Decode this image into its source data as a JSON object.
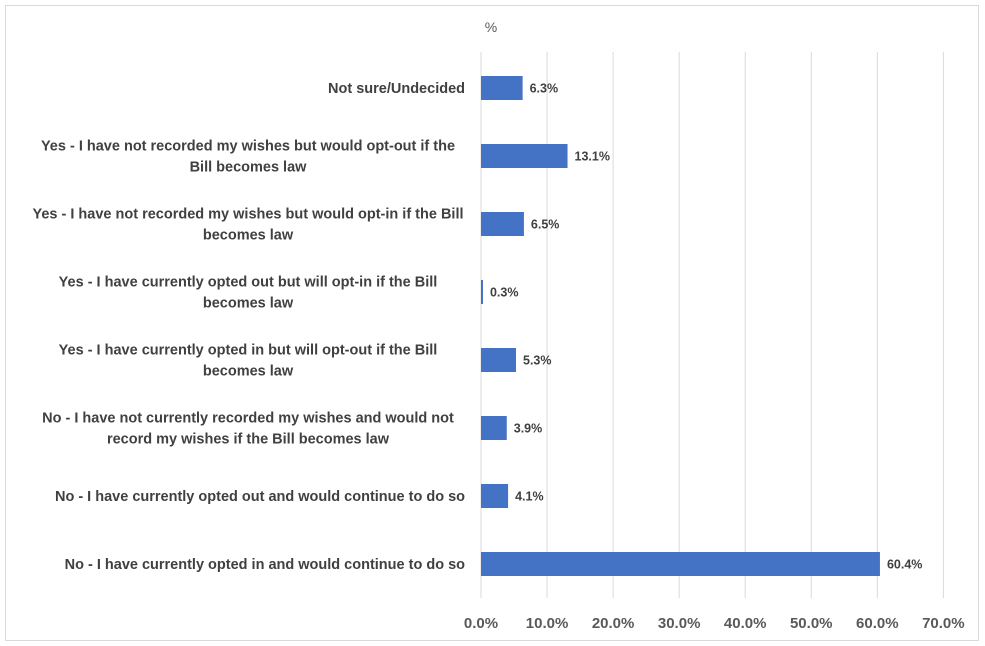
{
  "chart_data": {
    "type": "bar",
    "orientation": "horizontal",
    "title": "",
    "unit_label": "%",
    "xlabel": "",
    "ylabel": "",
    "xlim": [
      0,
      70
    ],
    "ticks": [
      "0.0%",
      "10.0%",
      "20.0%",
      "30.0%",
      "40.0%",
      "50.0%",
      "60.0%",
      "70.0%"
    ],
    "tick_values": [
      0,
      10,
      20,
      30,
      40,
      50,
      60,
      70
    ],
    "grid": true,
    "legend": "none",
    "bar_color": "#4472c4",
    "categories": [
      [
        "Not sure/Undecided"
      ],
      [
        "Yes - I have not recorded my wishes but would opt-out if the",
        "Bill becomes law"
      ],
      [
        "Yes - I have not recorded my wishes but would opt-in if the Bill",
        "becomes law"
      ],
      [
        "Yes - I have currently opted out but will opt-in if the Bill",
        "becomes law"
      ],
      [
        "Yes - I have currently opted in but will opt-out if the Bill",
        "becomes law"
      ],
      [
        "No - I have not currently recorded my wishes and would not",
        "record my wishes if the Bill becomes law"
      ],
      [
        "No - I have currently opted out and would continue to do so"
      ],
      [
        "No - I have currently opted in and would continue to do so"
      ]
    ],
    "values": [
      6.3,
      13.1,
      6.5,
      0.3,
      5.3,
      3.9,
      4.1,
      60.4
    ],
    "data_labels": [
      "6.3%",
      "13.1%",
      "6.5%",
      "0.3%",
      "5.3%",
      "3.9%",
      "4.1%",
      "60.4%"
    ]
  }
}
